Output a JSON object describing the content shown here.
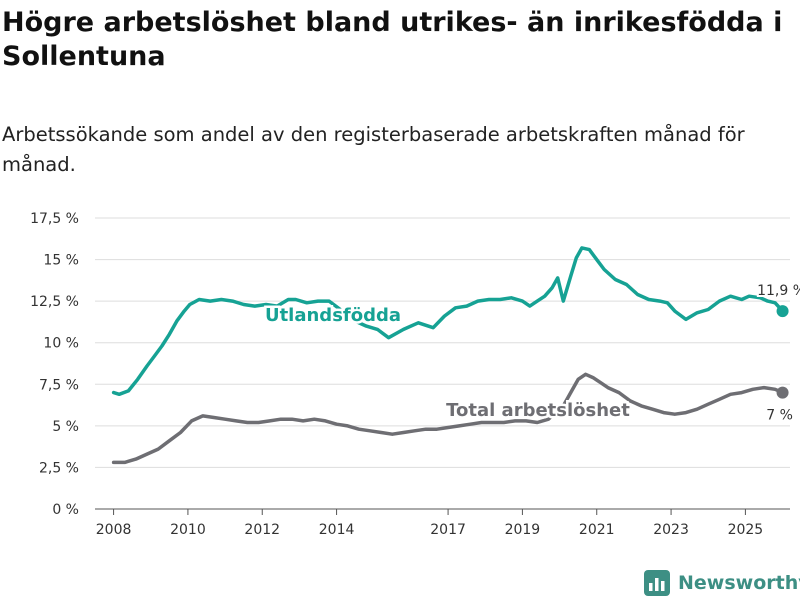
{
  "title": "Högre arbetslöshet bland utrikes- än inrikesfödda i Sollentuna",
  "subtitle": "Arbetssökande som andel av den registerbaserade arbetskraften månad för månad.",
  "brand": {
    "name": "Newsworthy",
    "icon": "bar-chart-logo-icon"
  },
  "colors": {
    "teal": "#16a294",
    "gray": "#6e6e73",
    "grid": "#dddddd",
    "brand": "#3d8f84"
  },
  "chart_data": {
    "type": "line",
    "title": "Högre arbetslöshet bland utrikes- än inrikesfödda i Sollentuna",
    "xlabel": "",
    "ylabel": "",
    "xlim": [
      2007.5,
      2026.2
    ],
    "ylim": [
      0,
      17.5
    ],
    "y_ticks": [
      0,
      2.5,
      5,
      7.5,
      10,
      12.5,
      15,
      17.5
    ],
    "y_tick_labels": [
      "0 %",
      "2,5 %",
      "5 %",
      "7,5 %",
      "10 %",
      "12,5 %",
      "15 %",
      "17,5 %"
    ],
    "x_ticks": [
      2008,
      2010,
      2012,
      2014,
      2017,
      2019,
      2021,
      2023,
      2025
    ],
    "x_tick_labels": [
      "2008",
      "2010",
      "2012",
      "2014",
      "2017",
      "2019",
      "2021",
      "2023",
      "2025"
    ],
    "series": [
      {
        "name": "Utlandsfödda",
        "color": "#16a294",
        "end_label": "11,9 %",
        "x": [
          2008.0,
          2008.15,
          2008.4,
          2008.65,
          2008.9,
          2009.1,
          2009.3,
          2009.5,
          2009.7,
          2009.9,
          2010.05,
          2010.3,
          2010.6,
          2010.9,
          2011.2,
          2011.5,
          2011.8,
          2012.1,
          2012.4,
          2012.7,
          2012.9,
          2013.2,
          2013.5,
          2013.8,
          2014.1,
          2014.4,
          2014.8,
          2015.1,
          2015.4,
          2015.8,
          2016.2,
          2016.6,
          2016.9,
          2017.2,
          2017.5,
          2017.8,
          2018.1,
          2018.4,
          2018.7,
          2019.0,
          2019.2,
          2019.4,
          2019.6,
          2019.8,
          2019.95,
          2020.1,
          2020.3,
          2020.45,
          2020.6,
          2020.8,
          2021.0,
          2021.2,
          2021.5,
          2021.8,
          2022.1,
          2022.4,
          2022.7,
          2022.9,
          2023.1,
          2023.4,
          2023.7,
          2024.0,
          2024.3,
          2024.6,
          2024.9,
          2025.1,
          2025.4,
          2025.6,
          2025.8,
          2026.0
        ],
        "values": [
          7.0,
          6.9,
          7.1,
          7.8,
          8.6,
          9.2,
          9.8,
          10.5,
          11.3,
          11.9,
          12.3,
          12.6,
          12.5,
          12.6,
          12.5,
          12.3,
          12.2,
          12.3,
          12.2,
          12.6,
          12.6,
          12.4,
          12.5,
          12.5,
          12.0,
          11.4,
          11.0,
          10.8,
          10.3,
          10.8,
          11.2,
          10.9,
          11.6,
          12.1,
          12.2,
          12.5,
          12.6,
          12.6,
          12.7,
          12.5,
          12.2,
          12.5,
          12.8,
          13.3,
          13.9,
          12.5,
          14.0,
          15.1,
          15.7,
          15.6,
          15.0,
          14.4,
          13.8,
          13.5,
          12.9,
          12.6,
          12.5,
          12.4,
          11.9,
          11.4,
          11.8,
          12.0,
          12.5,
          12.8,
          12.6,
          12.8,
          12.7,
          12.5,
          12.4,
          11.9
        ]
      },
      {
        "name": "Total arbetslöshet",
        "color": "#6e6e73",
        "end_label": "7 %",
        "x": [
          2008.0,
          2008.3,
          2008.6,
          2008.9,
          2009.2,
          2009.5,
          2009.8,
          2010.1,
          2010.4,
          2010.7,
          2011.0,
          2011.3,
          2011.6,
          2011.9,
          2012.2,
          2012.5,
          2012.8,
          2013.1,
          2013.4,
          2013.7,
          2014.0,
          2014.3,
          2014.6,
          2014.9,
          2015.2,
          2015.5,
          2015.8,
          2016.1,
          2016.4,
          2016.7,
          2017.0,
          2017.3,
          2017.6,
          2017.9,
          2018.2,
          2018.5,
          2018.8,
          2019.1,
          2019.4,
          2019.7,
          2019.9,
          2020.1,
          2020.3,
          2020.5,
          2020.7,
          2020.9,
          2021.1,
          2021.3,
          2021.6,
          2021.9,
          2022.2,
          2022.5,
          2022.8,
          2023.1,
          2023.4,
          2023.7,
          2024.0,
          2024.3,
          2024.6,
          2024.9,
          2025.2,
          2025.5,
          2025.8,
          2026.0
        ],
        "values": [
          2.8,
          2.8,
          3.0,
          3.3,
          3.6,
          4.1,
          4.6,
          5.3,
          5.6,
          5.5,
          5.4,
          5.3,
          5.2,
          5.2,
          5.3,
          5.4,
          5.4,
          5.3,
          5.4,
          5.3,
          5.1,
          5.0,
          4.8,
          4.7,
          4.6,
          4.5,
          4.6,
          4.7,
          4.8,
          4.8,
          4.9,
          5.0,
          5.1,
          5.2,
          5.2,
          5.2,
          5.3,
          5.3,
          5.2,
          5.4,
          5.8,
          6.2,
          7.0,
          7.8,
          8.1,
          7.9,
          7.6,
          7.3,
          7.0,
          6.5,
          6.2,
          6.0,
          5.8,
          5.7,
          5.8,
          6.0,
          6.3,
          6.6,
          6.9,
          7.0,
          7.2,
          7.3,
          7.2,
          7.0
        ]
      }
    ],
    "annotations": [
      {
        "text": "Utlandsfödda",
        "series": "Utlandsfödda"
      },
      {
        "text": "Total arbetslöshet",
        "series": "Total arbetslöshet"
      }
    ]
  }
}
